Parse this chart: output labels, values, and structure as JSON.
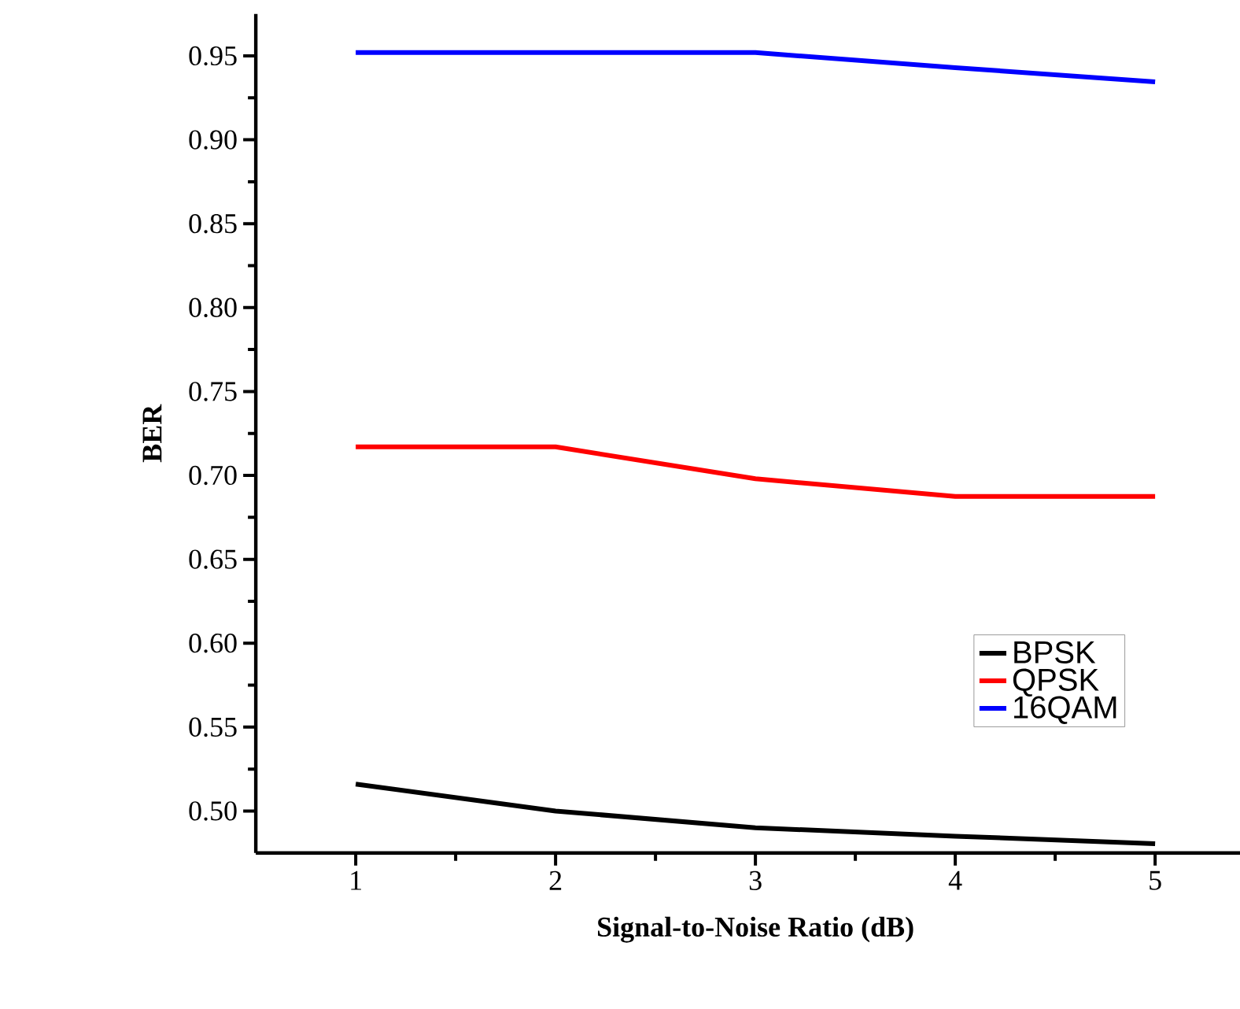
{
  "chart_data": {
    "type": "line",
    "xlabel": "Signal-to-Noise Ratio (dB)",
    "ylabel": "BER",
    "x": [
      1,
      2,
      3,
      4,
      5
    ],
    "series": [
      {
        "name": "BPSK",
        "color": "#000000",
        "values": [
          0.516,
          0.5,
          0.49,
          0.485,
          0.4805
        ]
      },
      {
        "name": "QPSK",
        "color": "#ff0000",
        "values": [
          0.717,
          0.717,
          0.698,
          0.6875,
          0.6875
        ]
      },
      {
        "name": "16QAM",
        "color": "#0000ff",
        "values": [
          0.952,
          0.952,
          0.952,
          0.943,
          0.9345
        ]
      }
    ],
    "xlim": [
      0.5,
      5.5
    ],
    "ylim": [
      0.475,
      0.975
    ],
    "xticks": [
      1,
      2,
      3,
      4,
      5
    ],
    "yticks": [
      {
        "value": 0.5,
        "label": "0.50"
      },
      {
        "value": 0.55,
        "label": "0.55"
      },
      {
        "value": 0.6,
        "label": "0.60"
      },
      {
        "value": 0.65,
        "label": "0.65"
      },
      {
        "value": 0.7,
        "label": "0.70"
      },
      {
        "value": 0.75,
        "label": "0.75"
      },
      {
        "value": 0.8,
        "label": "0.80"
      },
      {
        "value": 0.85,
        "label": "0.85"
      },
      {
        "value": 0.9,
        "label": "0.90"
      },
      {
        "value": 0.95,
        "label": "0.95"
      }
    ],
    "legend": "bottom right",
    "grid": false,
    "marker": "none",
    "line_style": "solid"
  }
}
